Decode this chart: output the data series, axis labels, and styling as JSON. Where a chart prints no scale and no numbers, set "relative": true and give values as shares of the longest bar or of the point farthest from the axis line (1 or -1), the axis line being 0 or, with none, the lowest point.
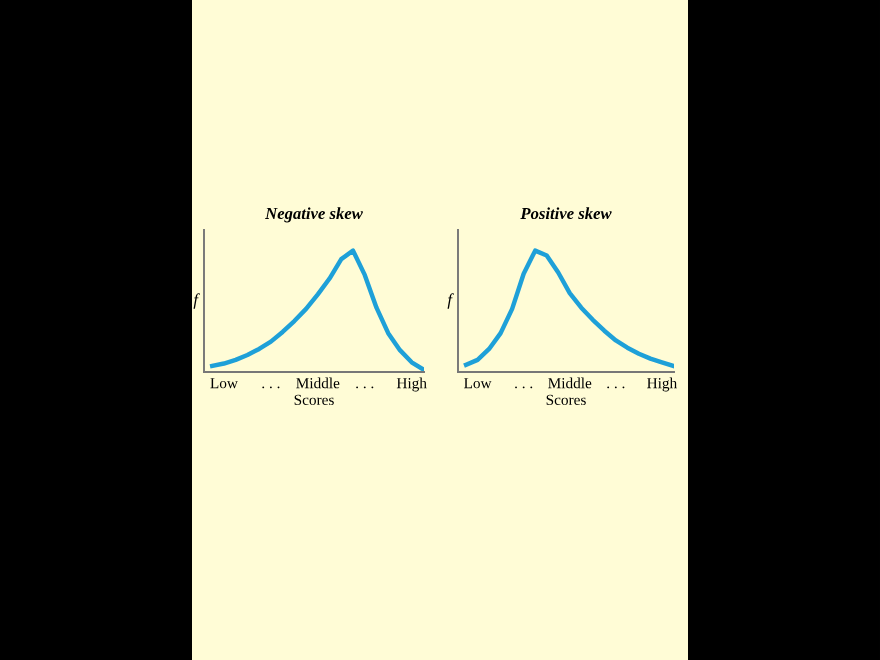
{
  "chart_data": [
    {
      "type": "line",
      "title": "Negative skew",
      "xlabel": "Scores",
      "ylabel": "f",
      "relative": true,
      "categories": [
        null,
        "Low",
        null,
        null,
        null,
        ". . .",
        null,
        null,
        null,
        "Middle",
        null,
        null,
        null,
        ". . .",
        null,
        null,
        null,
        "High",
        null
      ],
      "grid": false,
      "legend": false,
      "series": [
        {
          "color": "#1ea0d8",
          "values": [
            0.05,
            0.07,
            0.1,
            0.14,
            0.19,
            0.25,
            0.33,
            0.42,
            0.52,
            0.64,
            0.77,
            0.93,
            1.0,
            0.8,
            0.53,
            0.32,
            0.18,
            0.08,
            0.02
          ]
        }
      ]
    },
    {
      "type": "line",
      "title": "Positive skew",
      "xlabel": "Scores",
      "ylabel": "f",
      "relative": true,
      "categories": [
        null,
        "Low",
        null,
        null,
        null,
        ". . .",
        null,
        null,
        null,
        "Middle",
        null,
        null,
        null,
        ". . .",
        null,
        null,
        null,
        "High",
        null
      ],
      "grid": false,
      "legend": false,
      "series": [
        {
          "color": "#1ea0d8",
          "values": [
            0.06,
            0.1,
            0.19,
            0.32,
            0.52,
            0.81,
            1.0,
            0.96,
            0.82,
            0.65,
            0.53,
            0.43,
            0.34,
            0.26,
            0.2,
            0.15,
            0.11,
            0.08,
            0.05
          ]
        }
      ]
    }
  ]
}
